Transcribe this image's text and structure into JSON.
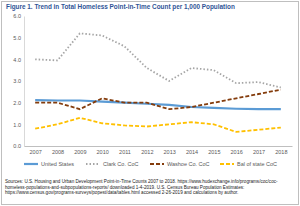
{
  "chart_data": {
    "type": "line",
    "title": "Figure 1. Trend in Total Homeless Point-in-Time Count per 1,000 Population",
    "categories": [
      "2007",
      "2008",
      "2009",
      "2010",
      "2011",
      "2012",
      "2013",
      "2014",
      "2015",
      "2016",
      "2017",
      "2018"
    ],
    "ylim": [
      0,
      6
    ],
    "yticks": [
      {
        "value": 0,
        "label": "0.0"
      },
      {
        "value": 1,
        "label": "1.0"
      },
      {
        "value": 2,
        "label": "2.0"
      },
      {
        "value": 3,
        "label": "3.0"
      },
      {
        "value": 4,
        "label": "4.0"
      },
      {
        "value": 5,
        "label": "5.0"
      },
      {
        "value": 6,
        "label": "6.0"
      }
    ],
    "grid": false,
    "legend": "bottom",
    "series": [
      {
        "name": "United States",
        "color": "#5b9bd5",
        "line_style": "solid",
        "values": [
          2.12,
          2.1,
          2.1,
          2.05,
          2.0,
          1.95,
          1.9,
          1.8,
          1.76,
          1.72,
          1.7,
          1.7
        ]
      },
      {
        "name": "Clark Co. CoC",
        "color": "#a5a5a5",
        "line_style": "dotted",
        "values": [
          4.0,
          3.95,
          5.2,
          5.1,
          4.6,
          3.6,
          3.0,
          3.6,
          3.5,
          2.9,
          2.95,
          2.7
        ]
      },
      {
        "name": "Washoe Co. CoC",
        "color": "#843c0c",
        "line_style": "dashed",
        "values": [
          2.0,
          2.0,
          1.7,
          2.2,
          2.0,
          2.0,
          1.7,
          1.8,
          2.0,
          2.2,
          2.4,
          2.6
        ]
      },
      {
        "name": "Bal of state CoC",
        "color": "#ffc000",
        "line_style": "dashed",
        "values": [
          0.8,
          1.0,
          1.3,
          1.05,
          0.95,
          0.9,
          1.0,
          1.1,
          1.0,
          0.65,
          0.75,
          0.85
        ]
      }
    ],
    "annotations": [
      "Sources: U.S. Housing and Urban Development Point-in-Time Counts 2007 to 2018. https://www.hudexchange.info/programs/coc/coc-homeless-populations-and-subpopulations-reports/ downloaded 1-4-2019. U.S. Census Bureau Population Estimates: https://www.census.gov/programs-surveys/popest/data/tables.html accessed 2-26-2019 and calculations by author."
    ]
  }
}
